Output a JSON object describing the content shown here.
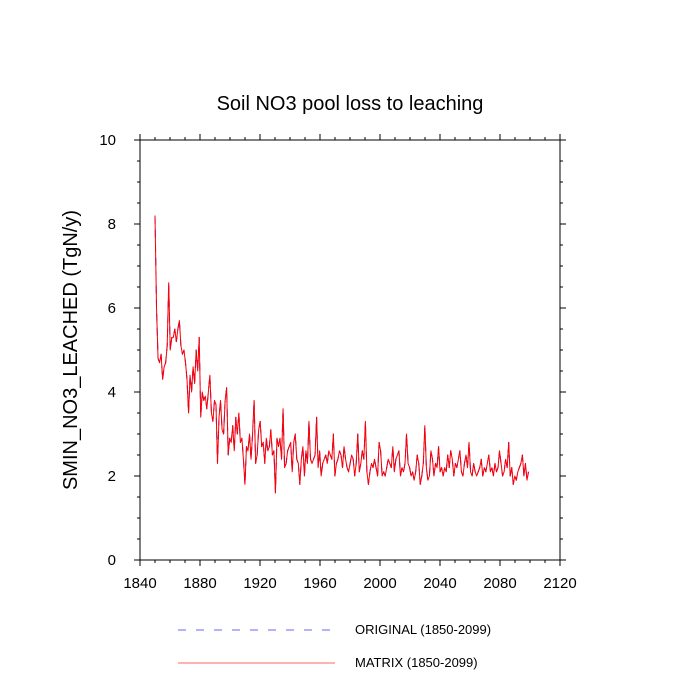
{
  "chart_data": {
    "type": "line",
    "title": "Soil NO3 pool loss to leaching",
    "xlabel": "",
    "ylabel": "SMIN_NO3_LEACHED  (TgN/y)",
    "xlim": [
      1840,
      2120
    ],
    "ylim": [
      0,
      10
    ],
    "xticks": [
      1840,
      1880,
      1920,
      1960,
      2000,
      2040,
      2080,
      2120
    ],
    "yticks": [
      0,
      2,
      4,
      6,
      8,
      10
    ],
    "x_start": 1850,
    "x_end": 2099,
    "grid": false,
    "legend_position": "bottom",
    "series": [
      {
        "name": "ORIGINAL (1850-2099)",
        "color": "#0000ff",
        "style": "dashed",
        "values": [
          8.2,
          6.0,
          4.8,
          4.7,
          4.9,
          4.3,
          4.6,
          4.7,
          5.1,
          6.6,
          5.0,
          5.3,
          5.3,
          5.5,
          5.2,
          5.5,
          5.7,
          5.1,
          4.9,
          5.0,
          4.7,
          4.3,
          3.5,
          4.4,
          4.0,
          4.6,
          4.2,
          5.0,
          4.5,
          5.3,
          3.4,
          4.0,
          3.8,
          3.9,
          3.6,
          4.0,
          4.4,
          3.5,
          3.3,
          3.8,
          3.7,
          2.3,
          3.4,
          3.8,
          3.1,
          3.0,
          3.8,
          4.1,
          2.5,
          2.9,
          2.8,
          3.2,
          2.6,
          3.4,
          3.0,
          3.5,
          2.8,
          2.9,
          2.4,
          1.8,
          2.7,
          2.6,
          3.0,
          2.4,
          3.0,
          3.8,
          2.3,
          2.5,
          3.1,
          3.3,
          2.7,
          2.8,
          2.3,
          2.9,
          2.6,
          2.7,
          3.1,
          2.5,
          2.6,
          1.6,
          2.9,
          2.7,
          2.9,
          2.4,
          3.6,
          2.2,
          2.3,
          2.6,
          2.7,
          2.8,
          2.1,
          2.8,
          3.0,
          2.4,
          2.3,
          1.8,
          2.4,
          2.7,
          2.0,
          2.6,
          2.3,
          3.3,
          2.4,
          2.3,
          2.4,
          2.5,
          3.4,
          2.2,
          2.6,
          2.0,
          2.3,
          2.4,
          2.5,
          2.3,
          2.6,
          2.5,
          2.4,
          3.0,
          2.0,
          2.3,
          2.4,
          2.6,
          2.5,
          2.2,
          2.7,
          2.4,
          2.2,
          2.1,
          2.3,
          2.5,
          2.4,
          2.0,
          2.3,
          3.0,
          2.1,
          2.3,
          2.6,
          2.4,
          3.3,
          2.1,
          1.8,
          2.1,
          2.3,
          2.2,
          2.4,
          2.2,
          2.0,
          2.8,
          2.6,
          2.0,
          2.1,
          2.0,
          2.2,
          2.4,
          2.3,
          2.2,
          2.7,
          2.1,
          2.4,
          2.5,
          2.6,
          2.0,
          2.2,
          2.1,
          2.3,
          3.0,
          2.3,
          2.2,
          2.0,
          2.1,
          1.9,
          2.1,
          2.5,
          2.3,
          1.8,
          2.0,
          2.3,
          3.2,
          2.2,
          1.9,
          2.0,
          2.6,
          2.4,
          2.0,
          2.3,
          2.2,
          2.7,
          2.1,
          2.2,
          2.0,
          2.2,
          2.1,
          2.5,
          2.2,
          2.6,
          2.4,
          2.0,
          2.3,
          2.2,
          2.4,
          2.6,
          2.1,
          2.0,
          2.3,
          2.5,
          2.2,
          2.8,
          2.1,
          2.0,
          2.3,
          2.1,
          2.0,
          2.1,
          2.2,
          2.4,
          2.0,
          2.2,
          2.1,
          2.3,
          2.5,
          2.1,
          2.2,
          2.0,
          2.3,
          2.1,
          2.2,
          2.6,
          2.3,
          2.0,
          2.1,
          2.4,
          2.2,
          2.8,
          2.0,
          2.2,
          1.8,
          2.0,
          1.9,
          2.1,
          2.2,
          2.3,
          2.5,
          2.0,
          2.3,
          1.9,
          2.1
        ]
      },
      {
        "name": "MATRIX (1850-2099)",
        "color": "#ff0000",
        "style": "solid",
        "values": [
          8.2,
          6.0,
          4.8,
          4.7,
          4.9,
          4.3,
          4.6,
          4.7,
          5.1,
          6.6,
          5.0,
          5.3,
          5.3,
          5.5,
          5.2,
          5.5,
          5.7,
          5.1,
          4.9,
          5.0,
          4.7,
          4.3,
          3.5,
          4.4,
          4.0,
          4.6,
          4.2,
          5.0,
          4.5,
          5.3,
          3.4,
          4.0,
          3.8,
          3.9,
          3.6,
          4.0,
          4.4,
          3.5,
          3.3,
          3.8,
          3.7,
          2.3,
          3.4,
          3.8,
          3.1,
          3.0,
          3.8,
          4.1,
          2.5,
          2.9,
          2.8,
          3.2,
          2.6,
          3.4,
          3.0,
          3.5,
          2.8,
          2.9,
          2.4,
          1.8,
          2.7,
          2.6,
          3.0,
          2.4,
          3.0,
          3.8,
          2.3,
          2.5,
          3.1,
          3.3,
          2.7,
          2.8,
          2.3,
          2.9,
          2.6,
          2.7,
          3.1,
          2.5,
          2.6,
          1.6,
          2.9,
          2.7,
          2.9,
          2.4,
          3.6,
          2.2,
          2.3,
          2.6,
          2.7,
          2.8,
          2.1,
          2.8,
          3.0,
          2.4,
          2.3,
          1.8,
          2.4,
          2.7,
          2.0,
          2.6,
          2.3,
          3.3,
          2.4,
          2.3,
          2.4,
          2.5,
          3.4,
          2.2,
          2.6,
          2.0,
          2.3,
          2.4,
          2.5,
          2.3,
          2.6,
          2.5,
          2.4,
          3.0,
          2.0,
          2.3,
          2.4,
          2.6,
          2.5,
          2.2,
          2.7,
          2.4,
          2.2,
          2.1,
          2.3,
          2.5,
          2.4,
          2.0,
          2.3,
          3.0,
          2.1,
          2.3,
          2.6,
          2.4,
          3.3,
          2.1,
          1.8,
          2.1,
          2.3,
          2.2,
          2.4,
          2.2,
          2.0,
          2.8,
          2.6,
          2.0,
          2.1,
          2.0,
          2.2,
          2.4,
          2.3,
          2.2,
          2.7,
          2.1,
          2.4,
          2.5,
          2.6,
          2.0,
          2.2,
          2.1,
          2.3,
          3.0,
          2.3,
          2.2,
          2.0,
          2.1,
          1.9,
          2.1,
          2.5,
          2.3,
          1.8,
          2.0,
          2.3,
          3.2,
          2.2,
          1.9,
          2.0,
          2.6,
          2.4,
          2.0,
          2.3,
          2.2,
          2.7,
          2.1,
          2.2,
          2.0,
          2.2,
          2.1,
          2.5,
          2.2,
          2.6,
          2.4,
          2.0,
          2.3,
          2.2,
          2.4,
          2.6,
          2.1,
          2.0,
          2.3,
          2.5,
          2.2,
          2.8,
          2.1,
          2.0,
          2.3,
          2.1,
          2.0,
          2.1,
          2.2,
          2.4,
          2.0,
          2.2,
          2.1,
          2.3,
          2.5,
          2.1,
          2.2,
          2.0,
          2.3,
          2.1,
          2.2,
          2.6,
          2.3,
          2.0,
          2.1,
          2.4,
          2.2,
          2.8,
          2.0,
          2.2,
          1.8,
          2.0,
          1.9,
          2.1,
          2.2,
          2.3,
          2.5,
          2.0,
          2.3,
          1.9,
          2.1
        ]
      }
    ]
  }
}
